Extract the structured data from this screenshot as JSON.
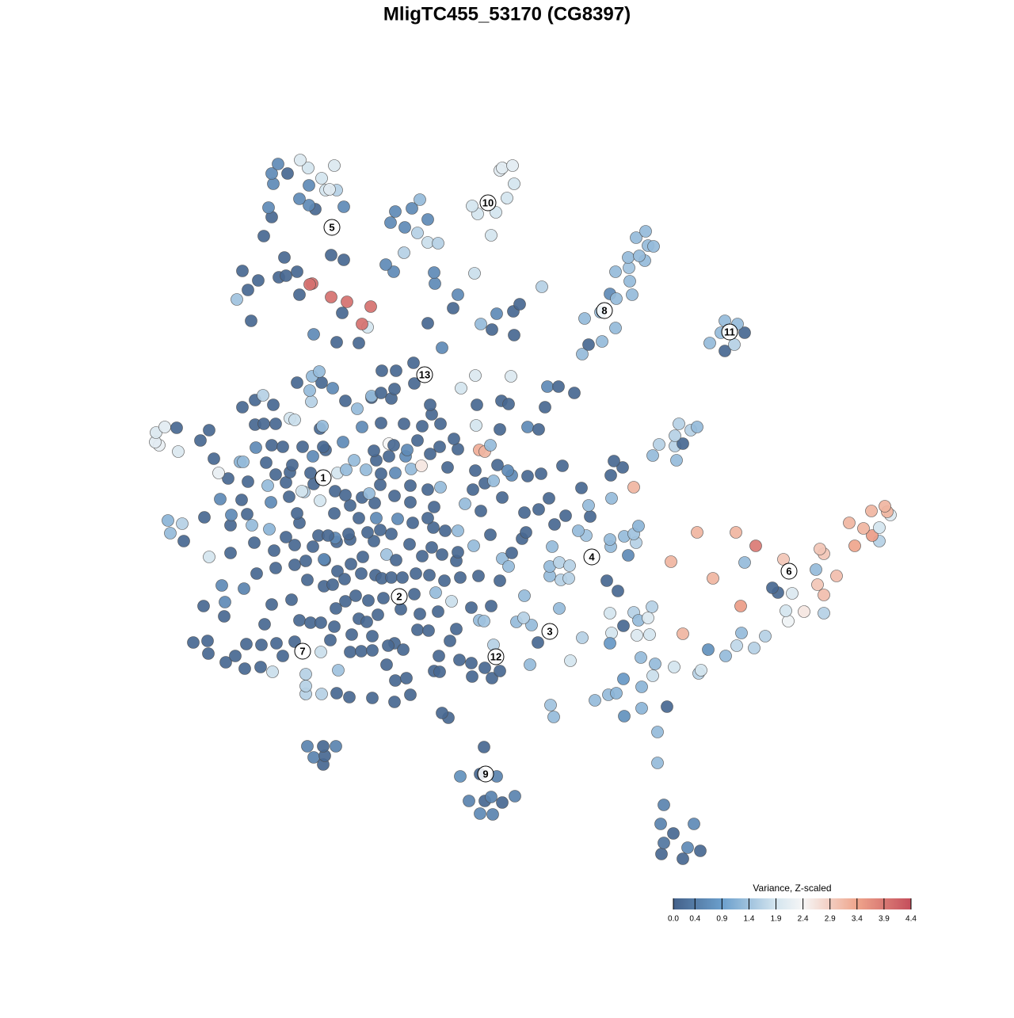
{
  "chart_data": {
    "type": "scatter",
    "title": "MligTC455_53170 (CG8397)",
    "xlim": [
      0,
      1280
    ],
    "ylim": [
      1280,
      0
    ],
    "x": [
      835,
      862,
      838,
      868,
      884,
      850,
      834,
      876,
      838,
      830,
      830,
      606,
      622,
      592,
      612,
      634,
      620,
      650,
      581,
      606,
      627,
      611,
      408,
      396,
      410,
      388,
      408,
      424,
      566,
      558,
      699,
      695,
      788,
      810,
      842,
      751,
      768,
      778,
      810,
      787,
      824,
      827,
      851,
      882,
      885,
      809,
      894,
      916,
      930,
      952,
      966,
      936,
      862,
      804,
      820,
      772,
      787,
      770,
      800,
      823,
      806,
      818,
      770,
      720,
      735,
      669,
      995,
      992,
      1015,
      1040,
      935,
      982,
      975,
      1000,
      1040,
      1032,
      900,
      1056,
      1030,
      989,
      940,
      847,
      1040,
      1035,
      954,
      1079,
      880,
      929,
      1110,
      1101,
      1090,
      1110,
      1072,
      1124,
      1120,
      1100,
      1117,
      793,
      771,
      803,
      770,
      740,
      788,
      800,
      730,
      806,
      745,
      743,
      772,
      734,
      800,
      771,
      786,
      775,
      824,
      854,
      832,
      852,
      862,
      852,
      872,
      880,
      857,
      766,
      780,
      679,
      652,
      671,
      661,
      706,
      662,
      708,
      718,
      694,
      694,
      706,
      719,
      697,
      634,
      642,
      646,
      659,
      664,
      700,
      714,
      680,
      693,
      662,
      596,
      621,
      631,
      612,
      595,
      580,
      623,
      605,
      611,
      425,
      441,
      470,
      386,
      406,
      386,
      386,
      427,
      498,
      518,
      499,
      513,
      498,
      548,
      555,
      488,
      405,
      357,
      344,
      329,
      309,
      285,
      263,
      244,
      262,
      297,
      311,
      330,
      349,
      372,
      417,
      442,
      456,
      470,
      490,
      509,
      444,
      470,
      527,
      541,
      554,
      568,
      576,
      334,
      283,
      257,
      284,
      343,
      368,
      378,
      392,
      405,
      422,
      453,
      463,
      477,
      506,
      530,
      553,
      570,
      595,
      620,
      424,
      436,
      449,
      465,
      484,
      523,
      550,
      280,
      308,
      388,
      409,
      420,
      426,
      435,
      456,
      474,
      482,
      494,
      508,
      525,
      542,
      561,
      581,
      604,
      631,
      324,
      348,
      372,
      386,
      410,
      443,
      458,
      488,
      500,
      533,
      558,
      576,
      264,
      291,
      321,
      346,
      372,
      395,
      409,
      425,
      442,
      472,
      494,
      517,
      545,
      578,
      598,
      232,
      215,
      230,
      212,
      258,
      291,
      318,
      340,
      361,
      378,
      402,
      423,
      414,
      440,
      464,
      480,
      502,
      521,
      547,
      562,
      578,
      619,
      292,
      312,
      375,
      422,
      453,
      475,
      540,
      278,
      305,
      342,
      365,
      384,
      404,
      442,
      457,
      473,
      498,
      518,
      548,
      587,
      607,
      634,
      313,
      338,
      361,
      381,
      396,
      423,
      436,
      466,
      480,
      518,
      540,
      556,
      597,
      612,
      623,
      646,
      666,
      683,
      288,
      276,
      348,
      366,
      392,
      426,
      437,
      462,
      481,
      499,
      519,
      532,
      565,
      600,
      628,
      641,
      710,
      303,
      307,
      336,
      369,
      395,
      411,
      447,
      475,
      491,
      512,
      543,
      578,
      605,
      612,
      619,
      201,
      196,
      225,
      270,
      253,
      264,
      323,
      343,
      357,
      382,
      408,
      433,
      472,
      491,
      497,
      514,
      527,
      555,
      573,
      197,
      208,
      223,
      322,
      333,
      348,
      366,
      372,
      404,
      407,
      457,
      481,
      510,
      533,
      556,
      601,
      631,
      666,
      680,
      306,
      322,
      332,
      345,
      393,
      436,
      451,
      469,
      494,
      545,
      543,
      602,
      633,
      642,
      688,
      391,
      420,
      469,
      481,
      498,
      523,
      375,
      406,
      394,
      403,
      482,
      500,
      522,
      582,
      600,
      645,
      691,
      705,
      725,
      735,
      743,
      760,
      777,
      738,
      758,
      770,
      778,
      798,
      795,
      777,
      794,
      814,
      793,
      807,
      818,
      825,
      803,
      815,
      915,
      927,
      896,
      910,
      940,
      931,
      915,
      425,
      453,
      396,
      464,
      457,
      558,
      621,
      649,
      607,
      540,
      317,
      432,
      468,
      438,
      418,
      572,
      627,
      648,
      656,
      299,
      313,
      378,
      394,
      391,
      326,
      352,
      361,
      375,
      306,
      549,
      578,
      684,
      599,
      548,
      497,
      487,
      434,
      418,
      359,
      510,
      540,
      553,
      527,
      620,
      333,
      343,
      511,
      493,
      540,
      398,
      390,
      434,
      339,
      499,
      520,
      530,
      603,
      626,
      596,
      378,
      640,
      411,
      425,
      416,
      345,
      390,
      649,
      406,
      343,
      363,
      389,
      422,
      631,
      634,
      647,
      351,
      379
    ],
    "y": [
      202,
      196,
      216,
      210,
      206,
      228,
      240,
      240,
      264,
      317,
      356,
      253,
      252,
      269,
      269,
      267,
      274,
      275,
      300,
      303,
      300,
      337,
      315,
      324,
      326,
      338,
      338,
      338,
      374,
      380,
      375,
      390,
      376,
      386,
      388,
      396,
      403,
      405,
      413,
      423,
      427,
      442,
      438,
      430,
      434,
      450,
      460,
      452,
      465,
      462,
      477,
      481,
      480,
      478,
      479,
      481,
      490,
      506,
      507,
      514,
      497,
      500,
      468,
      446,
      475,
      441,
      496,
      509,
      508,
      506,
      515,
      532,
      538,
      531,
      529,
      542,
      550,
      553,
      561,
      574,
      570,
      571,
      581,
      587,
      591,
      591,
      608,
      608,
      597,
      604,
      613,
      614,
      620,
      630,
      634,
      635,
      641,
      579,
      590,
      595,
      599,
      604,
      603,
      606,
      610,
      616,
      628,
      642,
      651,
      664,
      665,
      680,
      690,
      698,
      705,
      699,
      719,
      717,
      720,
      730,
      737,
      741,
      745,
      547,
      534,
      469,
      495,
      491,
      500,
      512,
      528,
      548,
      550,
      553,
      565,
      570,
      566,
      590,
      575,
      565,
      582,
      600,
      608,
      618,
      629,
      637,
      651,
      633,
      426,
      424,
      433,
      437,
      443,
      447,
      466,
      497,
      496,
      405,
      400,
      399,
      404,
      404,
      414,
      429,
      434,
      394,
      403,
      421,
      424,
      468,
      433,
      432,
      441,
      457,
      452,
      432,
      438,
      436,
      444,
      455,
      469,
      471,
      452,
      467,
      466,
      468,
      470,
      472,
      457,
      458,
      459,
      465,
      460,
      479,
      477,
      485,
      484,
      452,
      471,
      486,
      492,
      502,
      515,
      520,
      517,
      523,
      497,
      494,
      494,
      489,
      499,
      495,
      504,
      511,
      505,
      508,
      521,
      513,
      515,
      512,
      521,
      528,
      522,
      525,
      530,
      532,
      541,
      537,
      548,
      540,
      542,
      559,
      549,
      556,
      554,
      550,
      551,
      551,
      556,
      554,
      547,
      551,
      553,
      547,
      556,
      563,
      567,
      572,
      573,
      568,
      577,
      580,
      573,
      578,
      580,
      572,
      577,
      582,
      595,
      585,
      592,
      590,
      574,
      596,
      599,
      597,
      606,
      593,
      589,
      583,
      591,
      597,
      607,
      619,
      623,
      627,
      617,
      617,
      612,
      602,
      620,
      604,
      601,
      604,
      606,
      608,
      611,
      625,
      620,
      614,
      610,
      610,
      605,
      630,
      631,
      632,
      632,
      626,
      626,
      626,
      650,
      649,
      646,
      653,
      659,
      648,
      642,
      652,
      645,
      654,
      646,
      640,
      644,
      635,
      652,
      672,
      667,
      671,
      660,
      669,
      660,
      655,
      657,
      668,
      667,
      662,
      665,
      662,
      670,
      673,
      680,
      679,
      682,
      676,
      683,
      681,
      684,
      683,
      683,
      687,
      687,
      682,
      683,
      688,
      692,
      690,
      686,
      693,
      686,
      692,
      697,
      697,
      696,
      693,
      704,
      712,
      699,
      699,
      704,
      704,
      707,
      713,
      712,
      710,
      718,
      718,
      722,
      710,
      701,
      724,
      737,
      715,
      718,
      716,
      716,
      716,
      722,
      711,
      720,
      718,
      712,
      724,
      716,
      726,
      734,
      741,
      740,
      744,
      745,
      745,
      752,
      750,
      739,
      742,
      741,
      746,
      745,
      742,
      745,
      743,
      738,
      741,
      738,
      766,
      775,
      781,
      769,
      773,
      774,
      764,
      778,
      777,
      757,
      769,
      769,
      774,
      770,
      766,
      787,
      790,
      780,
      784,
      789,
      796,
      797,
      797,
      805,
      811,
      812,
      812,
      822,
      790,
      806,
      805,
      792,
      792,
      784,
      833,
      845,
      849,
      866,
      878,
      886,
      909,
      903,
      908,
      925,
      937,
      942,
      951,
      955,
      957,
      970,
      969,
      980,
      988,
      837,
      845,
      847,
      860,
      860,
      871,
      875,
      848,
      847,
      858,
      867,
      871,
      841,
      864,
      857,
      871,
      872,
      875,
      885,
      893,
      899,
      905,
      891,
      884,
      887,
      896,
      902,
      914,
      908,
      922,
      921,
      926,
      930,
      932,
      937,
      938,
      922,
      908,
      918,
      935,
      936,
      937,
      946,
      952,
      958,
      955,
      961,
      974,
      973,
      986,
      983,
      982,
      1006,
      993,
      999,
      1003,
      1016,
      1021,
      1019,
      1018,
      1013,
      1017,
      1028,
      1010,
      1012,
      1020,
      1029,
      1030,
      1040,
      1040,
      1041,
      1048,
      1046,
      1048,
      1055,
      1061,
      1061,
      1068,
      1071,
      1065,
      1068,
      1071,
      1073,
      1078
    ],
    "values": [
      0.1,
      0.1,
      0.3,
      0.6,
      0.1,
      0.1,
      0.5,
      0.6,
      0.5,
      1.3,
      1.3,
      0.6,
      0.5,
      0.5,
      0.1,
      0.1,
      0.5,
      0.5,
      0.7,
      0.1,
      0.5,
      0.1,
      0.1,
      0.5,
      0.1,
      0.5,
      0.1,
      0.5,
      0.1,
      0.1,
      1.3,
      1.4,
      0.7,
      1.2,
      0.1,
      1.3,
      1.3,
      1.2,
      1.2,
      0.8,
      1.8,
      1.3,
      1.9,
      1.6,
      1.9,
      1.3,
      0.7,
      1.3,
      1.7,
      1.6,
      1.6,
      1.3,
      3.2,
      2.0,
      1.9,
      1.9,
      0.1,
      1.9,
      1.6,
      1.6,
      1.3,
      2.0,
      0.8,
      1.9,
      1.6,
      1.3,
      2.3,
      1.9,
      2.6,
      1.6,
      3.5,
      0.1,
      0.1,
      2.0,
      3.1,
      3.0,
      3.2,
      3.1,
      1.3,
      3.0,
      1.3,
      3.2,
      3.0,
      3.0,
      3.9,
      3.4,
      3.2,
      3.2,
      1.6,
      3.5,
      3.2,
      1.9,
      3.2,
      2.0,
      3.2,
      3.2,
      3.2,
      0.6,
      1.3,
      1.6,
      1.3,
      1.4,
      1.3,
      1.4,
      1.3,
      1.2,
      0.1,
      1.3,
      1.3,
      0.1,
      3.2,
      0.1,
      0.1,
      0.1,
      1.3,
      1.3,
      1.6,
      1.6,
      0.1,
      1.6,
      1.6,
      1.3,
      1.6,
      0.1,
      0.1,
      0.1,
      1.3,
      1.3,
      1.6,
      1.3,
      1.3,
      1.6,
      1.6,
      1.3,
      1.3,
      1.6,
      1.6,
      1.3,
      1.3,
      1.3,
      0.1,
      0.1,
      0.1,
      0.1,
      0.1,
      0.1,
      0.1,
      0.1,
      0.1,
      0.1,
      0.1,
      0.1,
      0.1,
      0.1,
      1.6,
      1.3,
      1.4,
      0.1,
      0.1,
      0.1,
      1.6,
      1.6,
      1.6,
      1.6,
      1.4,
      0.1,
      0.1,
      0.1,
      0.1,
      0.1,
      0.1,
      0.1,
      0.1,
      1.8,
      0.1,
      1.8,
      0.1,
      0.1,
      0.1,
      0.1,
      0.1,
      0.1,
      0.1,
      0.1,
      0.1,
      0.1,
      0.1,
      0.1,
      0.1,
      0.1,
      0.1,
      0.1,
      0.1,
      0.1,
      0.1,
      0.1,
      0.1,
      0.1,
      0.1,
      0.1,
      0.1,
      0.1,
      0.1,
      0.6,
      0.1,
      0.1,
      0.1,
      0.1,
      0.1,
      0.1,
      0.1,
      0.1,
      0.1,
      0.1,
      0.1,
      0.1,
      1.8,
      0.1,
      0.1,
      0.1,
      0.1,
      0.1,
      0.1,
      0.1,
      0.1,
      1.3,
      0.6,
      0.5,
      0.1,
      0.1,
      0.1,
      0.1,
      0.1,
      0.1,
      0.1,
      0.1,
      0.1,
      0.1,
      0.1,
      0.1,
      0.1,
      0.1,
      0.1,
      0.1,
      0.1,
      0.1,
      0.1,
      0.1,
      0.1,
      0.1,
      0.1,
      1.4,
      0.1,
      0.1,
      0.1,
      0.1,
      1.9,
      0.1,
      0.1,
      0.1,
      0.1,
      0.1,
      0.6,
      0.1,
      0.1,
      0.1,
      0.1,
      0.1,
      0.1,
      0.1,
      1.3,
      0.1,
      1.3,
      1.6,
      1.2,
      0.1,
      0.1,
      1.3,
      1.2,
      0.1,
      0.1,
      0.1,
      0.6,
      0.1,
      0.1,
      0.1,
      0.1,
      0.6,
      0.1,
      0.1,
      0.1,
      1.3,
      0.1,
      0.6,
      0.1,
      0.1,
      0.1,
      0.1,
      0.6,
      0.1,
      0.6,
      0.1,
      0.6,
      0.1,
      1.6,
      1.9,
      0.1,
      0.1,
      0.1,
      0.1,
      0.1,
      0.1,
      1.3,
      0.1,
      0.1,
      0.1,
      1.3,
      0.1,
      1.9,
      0.1,
      0.1,
      0.1,
      1.3,
      0.1,
      0.1,
      0.1,
      1.3,
      0.1,
      0.1,
      1.3,
      0.6,
      0.1,
      0.1,
      0.1,
      2.2,
      0.1,
      0.1,
      0.1,
      1.9,
      1.3,
      1.3,
      0.1,
      0.6,
      1.3,
      2.6,
      0.1,
      0.1,
      0.1,
      0.6,
      0.1,
      1.2,
      1.3,
      0.1,
      0.1,
      0.6,
      0.1,
      1.3,
      0.1,
      0.1,
      0.6,
      0.1,
      0.1,
      3.3,
      3.2,
      1.3,
      2.2,
      2.1,
      2.0,
      0.1,
      0.1,
      0.1,
      0.6,
      0.1,
      0.1,
      0.1,
      0.1,
      0.6,
      0.1,
      2.4,
      0.1,
      0.6,
      0.1,
      0.1,
      0.1,
      2.0,
      2.1,
      0.1,
      0.1,
      0.1,
      0.1,
      1.9,
      1.8,
      0.1,
      1.3,
      0.6,
      0.1,
      0.1,
      0.1,
      0.1,
      1.9,
      0.1,
      0.6,
      0.1,
      0.1,
      0.1,
      1.6,
      0.1,
      1.6,
      0.1,
      1.3,
      0.1,
      0.1,
      0.1,
      0.1,
      0.1,
      0.1,
      0.1,
      0.1,
      1.3,
      0.6,
      1.3,
      0.1,
      0.1,
      0.1,
      0.1,
      0.1,
      1.3,
      1.3,
      0.1,
      0.1,
      0.1,
      1.9,
      2.0,
      2.0,
      0.6,
      0.1,
      0.1,
      1.3,
      0.1,
      1.3,
      1.3,
      1.3,
      1.3,
      0.6,
      1.3,
      1.3,
      1.3,
      1.3,
      1.4,
      1.3,
      1.3,
      1.3,
      1.3,
      1.3,
      1.3,
      1.3,
      0.1,
      1.6,
      1.3,
      1.3,
      0.1,
      1.3,
      1.3,
      0.1,
      0.1,
      0.6,
      1.9,
      4.0,
      0.6,
      0.1,
      0.1,
      1.3,
      0.1,
      0.1,
      0.1,
      4.0,
      4.0,
      4.0,
      0.1,
      0.6,
      0.1,
      0.1,
      1.4,
      0.1,
      0.1,
      4.0,
      4.0,
      0.1,
      0.1,
      0.1,
      0.1,
      0.1,
      0.6,
      0.6,
      1.6,
      1.8,
      0.6,
      0.6,
      0.6,
      0.1,
      0.1,
      0.1,
      1.6,
      1.8,
      1.6,
      1.6,
      1.9,
      0.1,
      0.1,
      0.6,
      0.6,
      0.6,
      0.1,
      0.6,
      0.6,
      0.6,
      0.6,
      0.6,
      1.3,
      1.9,
      1.9,
      1.9,
      0.6,
      1.9,
      1.9,
      1.6,
      2.1,
      0.6,
      0.6,
      1.9,
      1.9,
      0.6,
      0.1,
      1.9,
      2.0,
      2.1,
      2.1,
      2.1,
      0.6,
      2.0
    ],
    "labels": [
      {
        "text": "9",
        "x": 613,
        "y": 303
      },
      {
        "text": "7",
        "x": 382,
        "y": 458
      },
      {
        "text": "12",
        "x": 626,
        "y": 451
      },
      {
        "text": "3",
        "x": 694,
        "y": 483
      },
      {
        "text": "2",
        "x": 504,
        "y": 527
      },
      {
        "text": "4",
        "x": 747,
        "y": 577
      },
      {
        "text": "6",
        "x": 996,
        "y": 559
      },
      {
        "text": "1",
        "x": 408,
        "y": 677
      },
      {
        "text": "13",
        "x": 536,
        "y": 807
      },
      {
        "text": "8",
        "x": 763,
        "y": 888
      },
      {
        "text": "11",
        "x": 921,
        "y": 861
      },
      {
        "text": "5",
        "x": 419,
        "y": 993
      },
      {
        "text": "10",
        "x": 616,
        "y": 1024
      }
    ],
    "colorscale": [
      [
        0,
        "#44618a"
      ],
      [
        0.9,
        "#6b9fcc"
      ],
      [
        1.9,
        "#d4e5ef"
      ],
      [
        2.4,
        "#f6f6f6"
      ],
      [
        3.4,
        "#efa58c"
      ],
      [
        4.4,
        "#c44e5c"
      ]
    ],
    "colorbar": {
      "title": "Variance, Z-scaled",
      "lim": [
        0,
        4.4
      ],
      "ticks": [
        {
          "value": 0,
          "label": "0.0"
        },
        0.4,
        0.9,
        1.4,
        1.9,
        2.4,
        2.9,
        3.4,
        3.9,
        4.4
      ]
    }
  }
}
